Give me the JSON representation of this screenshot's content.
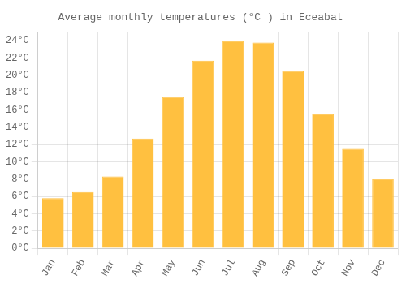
{
  "chart_data": {
    "type": "bar",
    "title": "Average monthly temperatures (°C ) in Eceabat",
    "categories": [
      "Jan",
      "Feb",
      "Mar",
      "Apr",
      "May",
      "Jun",
      "Jul",
      "Aug",
      "Sep",
      "Oct",
      "Nov",
      "Dec"
    ],
    "values": [
      5.8,
      6.5,
      8.3,
      12.7,
      17.5,
      21.7,
      24.0,
      23.8,
      20.5,
      15.5,
      11.5,
      8.0
    ],
    "color": "#FFC040",
    "ylim": [
      0,
      25
    ],
    "yticks": [
      {
        "value": 0,
        "label": "0°C"
      },
      {
        "value": 2,
        "label": "2°C"
      },
      {
        "value": 4,
        "label": "4°C"
      },
      {
        "value": 6,
        "label": "6°C"
      },
      {
        "value": 8,
        "label": "8°C"
      },
      {
        "value": 10,
        "label": "10°C"
      },
      {
        "value": 12,
        "label": "12°C"
      },
      {
        "value": 14,
        "label": "14°C"
      },
      {
        "value": 16,
        "label": "16°C"
      },
      {
        "value": 18,
        "label": "18°C"
      },
      {
        "value": 20,
        "label": "20°C"
      },
      {
        "value": 22,
        "label": "22°C"
      },
      {
        "value": 24,
        "label": "24°C"
      }
    ],
    "grid": true
  }
}
